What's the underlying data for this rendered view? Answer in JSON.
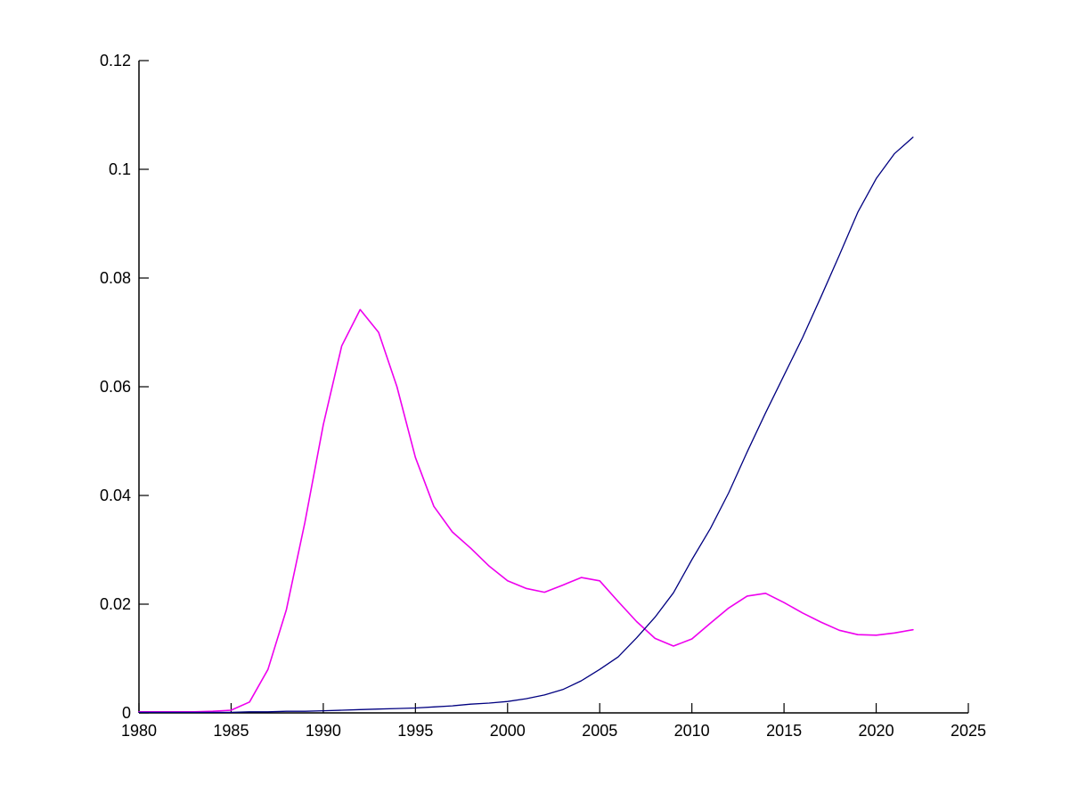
{
  "chart_data": {
    "type": "line",
    "title": "",
    "xlabel": "",
    "ylabel": "",
    "grid": false,
    "legend": null,
    "background_color": "#ffffff",
    "axis_color": "#000000",
    "xlim": [
      1980,
      2025
    ],
    "ylim": [
      0,
      0.12
    ],
    "xticks": {
      "values": [
        1980,
        1985,
        1990,
        1995,
        2000,
        2005,
        2010,
        2015,
        2020,
        2025
      ],
      "labels": [
        "1980",
        "1985",
        "1990",
        "1995",
        "2000",
        "2005",
        "2010",
        "2015",
        "2020",
        "2025"
      ]
    },
    "yticks": {
      "values": [
        0,
        0.02,
        0.04,
        0.06,
        0.08,
        0.1,
        0.12
      ],
      "labels": [
        "0",
        "0.02",
        "0.04",
        "0.06",
        "0.08",
        "0.1",
        "0.12"
      ]
    },
    "x": [
      1980,
      1981,
      1982,
      1983,
      1984,
      1985,
      1986,
      1987,
      1988,
      1989,
      1990,
      1991,
      1992,
      1993,
      1994,
      1995,
      1996,
      1997,
      1998,
      1999,
      2000,
      2001,
      2002,
      2003,
      2004,
      2005,
      2006,
      2007,
      2008,
      2009,
      2010,
      2011,
      2012,
      2013,
      2014,
      2015,
      2016,
      2017,
      2018,
      2019,
      2020,
      2021,
      2022
    ],
    "series": [
      {
        "id": "series1",
        "color": "#EE00EE",
        "line_width": 1.6,
        "values": [
          0.0002,
          0.0002,
          0.0002,
          0.0002,
          0.0003,
          0.0005,
          0.002,
          0.008,
          0.019,
          0.035,
          0.053,
          0.0675,
          0.0742,
          0.07,
          0.06,
          0.047,
          0.038,
          0.0333,
          0.0303,
          0.027,
          0.0243,
          0.0229,
          0.0222,
          0.0235,
          0.0249,
          0.0243,
          0.0205,
          0.0168,
          0.0137,
          0.0123,
          0.0136,
          0.0165,
          0.0193,
          0.0215,
          0.022,
          0.0203,
          0.0184,
          0.0167,
          0.0152,
          0.0144,
          0.0143,
          0.0147,
          0.0153
        ]
      },
      {
        "id": "series2",
        "color": "#000080",
        "line_width": 1.3,
        "values": [
          0.0001,
          0.0001,
          0.0001,
          0.0001,
          0.0001,
          0.0001,
          0.0002,
          0.0002,
          0.0003,
          0.0003,
          0.0004,
          0.0005,
          0.0006,
          0.0007,
          0.0008,
          0.0009,
          0.0011,
          0.0013,
          0.0016,
          0.0018,
          0.0021,
          0.0026,
          0.0033,
          0.0043,
          0.0059,
          0.008,
          0.0103,
          0.0138,
          0.0176,
          0.0221,
          0.0282,
          0.0339,
          0.0405,
          0.048,
          0.0552,
          0.0621,
          0.069,
          0.0765,
          0.0842,
          0.0921,
          0.0983,
          0.1029,
          0.1059
        ]
      }
    ]
  }
}
